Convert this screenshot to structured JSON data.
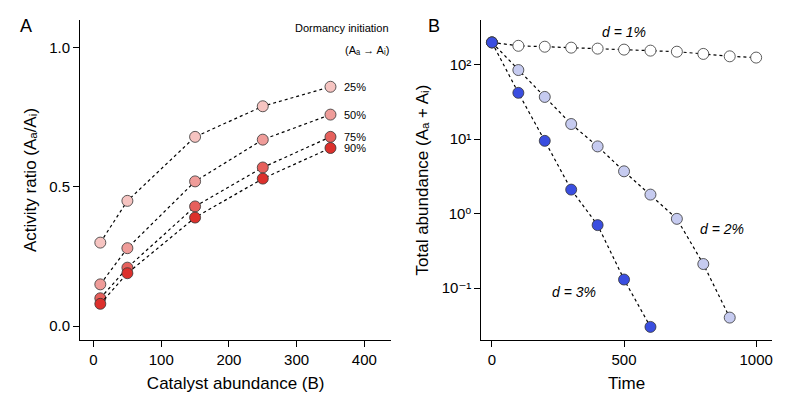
{
  "chart_data": [
    {
      "type": "line",
      "title": "A",
      "x_label": "Catalyst abundance (B)",
      "y_label": "Activity ratio (Aₐ/Aᵢ)",
      "annotations": [
        "Dormancy initiation",
        "(Aₐ → Aᵢ)"
      ],
      "x": [
        10,
        50,
        150,
        250,
        350
      ],
      "series": [
        {
          "name": "25%",
          "color": "#f6c4c1",
          "marker": "circle",
          "line_style": "dot",
          "values": [
            0.3,
            0.45,
            0.68,
            0.79,
            0.86
          ]
        },
        {
          "name": "50%",
          "color": "#ef9c99",
          "marker": "circle",
          "line_style": "dot",
          "values": [
            0.15,
            0.28,
            0.52,
            0.67,
            0.76
          ]
        },
        {
          "name": "75%",
          "color": "#e6605c",
          "marker": "circle",
          "line_style": "dot",
          "values": [
            0.1,
            0.21,
            0.43,
            0.57,
            0.68
          ]
        },
        {
          "name": "90%",
          "color": "#dc302c",
          "marker": "circle",
          "line_style": "dot",
          "values": [
            0.08,
            0.19,
            0.39,
            0.53,
            0.64
          ]
        }
      ],
      "xlim": [
        -20,
        440
      ],
      "xticks": [
        0,
        100,
        200,
        300,
        400
      ],
      "ylim": [
        -0.05,
        1.1
      ],
      "yticks": [
        {
          "value": 0,
          "label": "0.0"
        },
        0.5,
        {
          "value": 1,
          "label": "1.0"
        }
      ],
      "grid": false
    },
    {
      "type": "line",
      "title": "B",
      "x_label": "Time",
      "y_label": "Total abundance (Aₐ + Aᵢ)",
      "log": "y",
      "series": [
        {
          "name": "d = 1%",
          "color": "#ffffff",
          "marker": "circle",
          "line_style": "dot",
          "x": [
            0,
            100,
            200,
            300,
            400,
            500,
            600,
            700,
            800,
            900,
            1000
          ],
          "values": [
            200,
            180,
            175,
            170,
            165,
            160,
            155,
            150,
            140,
            130,
            125
          ]
        },
        {
          "name": "d = 2%",
          "color": "#c6cbf0",
          "marker": "circle",
          "line_style": "dot",
          "x": [
            0,
            100,
            200,
            300,
            400,
            500,
            600,
            700,
            800,
            900
          ],
          "values": [
            200,
            85,
            37,
            16,
            8,
            3.7,
            1.8,
            0.85,
            0.21,
            0.04
          ]
        },
        {
          "name": "d = 3%",
          "color": "#3a4ee0",
          "marker": "circle",
          "line_style": "dot",
          "x": [
            0,
            100,
            200,
            300,
            400,
            500,
            600
          ],
          "values": [
            200,
            42,
            9.5,
            2.1,
            0.7,
            0.13,
            0.03
          ]
        }
      ],
      "xlim": [
        -40,
        1060
      ],
      "xticks": [
        0,
        500,
        1000
      ],
      "ylim": [
        0.02,
        400
      ],
      "yticks": [
        {
          "value": 0.1,
          "label": "10⁻¹"
        },
        {
          "value": 1,
          "label": "10⁰"
        },
        {
          "value": 10,
          "label": "10¹"
        },
        {
          "value": 100,
          "label": "10²"
        }
      ],
      "grid": false
    }
  ]
}
